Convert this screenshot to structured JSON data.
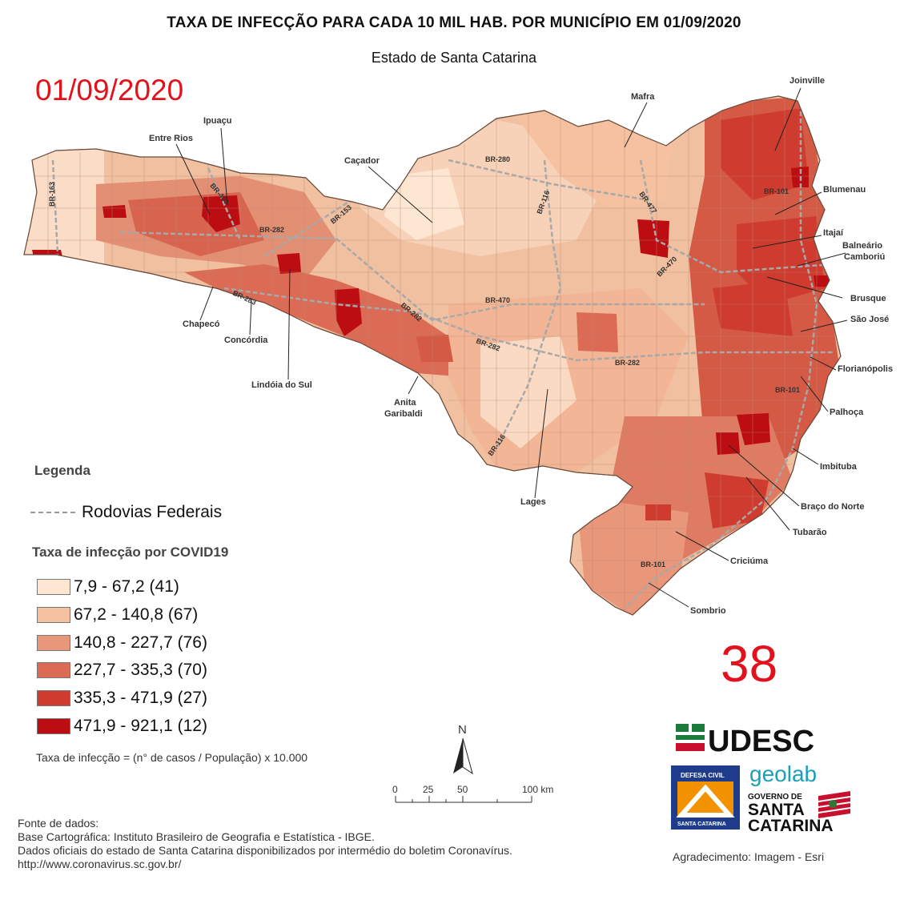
{
  "header": {
    "title": "TAXA DE INFECÇÃO PARA CADA 10 MIL HAB. POR MUNICÍPIO EM 01/09/2020",
    "subtitle": "Estado de Santa Catarina"
  },
  "date_stamp": "01/09/2020",
  "big_number": "38",
  "map": {
    "class_colors": [
      "#fde6d2",
      "#f5c1a0",
      "#e9977a",
      "#db6b55",
      "#cf3b2e",
      "#bb0d12"
    ],
    "cities": [
      "Joinville",
      "Mafra",
      "Ipuaçu",
      "Entre Rios",
      "Caçador",
      "Blumenau",
      "Itajaí",
      "Balneário",
      "Camboriú",
      "Brusque",
      "São José",
      "Florianópolis",
      "Palhoça",
      "Imbituba",
      "Braço do Norte",
      "Tubarão",
      "Criciúma",
      "Sombrio",
      "Lages",
      "Anita",
      "Garibaldi",
      "Lindóia do Sul",
      "Concórdia",
      "Chapecó"
    ],
    "roads": [
      "BR-163",
      "BR-480",
      "BR-282",
      "BR-153",
      "BR-283",
      "BR-282",
      "BR-280",
      "BR-116",
      "BR-477",
      "BR-470",
      "BR-470",
      "BR-282",
      "BR-282",
      "BR-101",
      "BR-101",
      "BR-116",
      "BR-101"
    ]
  },
  "legend": {
    "title": "Legenda",
    "roads_label": "Rodovias Federais",
    "classes_title": "Taxa de infecção por COVID19",
    "classes": [
      {
        "label": "7,9 - 67,2 (41)",
        "color": "#fde6d2"
      },
      {
        "label": "67,2 - 140,8 (67)",
        "color": "#f5c1a0"
      },
      {
        "label": "140,8 - 227,7 (76)",
        "color": "#e9977a"
      },
      {
        "label": "227,7 - 335,3 (70)",
        "color": "#db6b55"
      },
      {
        "label": "335,3 - 471,9 (27)",
        "color": "#cf3b2e"
      },
      {
        "label": "471,9 - 921,1 (12)",
        "color": "#bb0d12"
      }
    ],
    "formula": "Taxa de infecção = (n° de casos / População) x 10.000"
  },
  "north_arrow": "N",
  "scale_bar": {
    "ticks": [
      "0",
      "25",
      "50",
      "100 km"
    ]
  },
  "source": {
    "line1": "Fonte de dados:",
    "line2": "Base Cartográfica: Instituto Brasileiro de Geografia e Estatística - IBGE.",
    "line3": "Dados oficiais do estado de Santa Catarina disponibilizados por intermédio do boletim Coronavírus.",
    "line4": "http://www.coronavirus.sc.gov.br/"
  },
  "logos": {
    "udesc": "UDESC",
    "geolab": "geolab",
    "defesa_top": "DEFESA CIVIL",
    "defesa_bottom": "SANTA CATARINA",
    "gov_line1": "GOVERNO DE",
    "gov_line2": "SANTA",
    "gov_line3": "CATARINA"
  },
  "acknowledgement": "Agradecimento: Imagem - Esri"
}
